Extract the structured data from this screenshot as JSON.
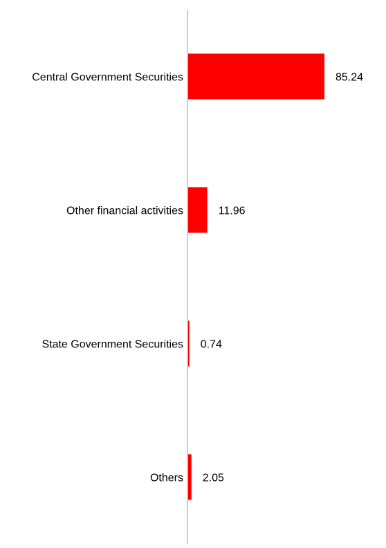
{
  "chart_data": {
    "type": "bar",
    "orientation": "horizontal",
    "categories": [
      "Central Government Securities",
      "Other financial activities",
      "State Government Securities",
      "Others"
    ],
    "values": [
      85.24,
      11.96,
      0.74,
      2.05
    ],
    "value_labels": [
      "85.24",
      "11.96",
      "0.74",
      "2.05"
    ],
    "xlim": [
      0,
      100
    ],
    "grid": false,
    "legend": "none",
    "bar_color": "#ff0000",
    "axis_color": "#cccccc"
  }
}
